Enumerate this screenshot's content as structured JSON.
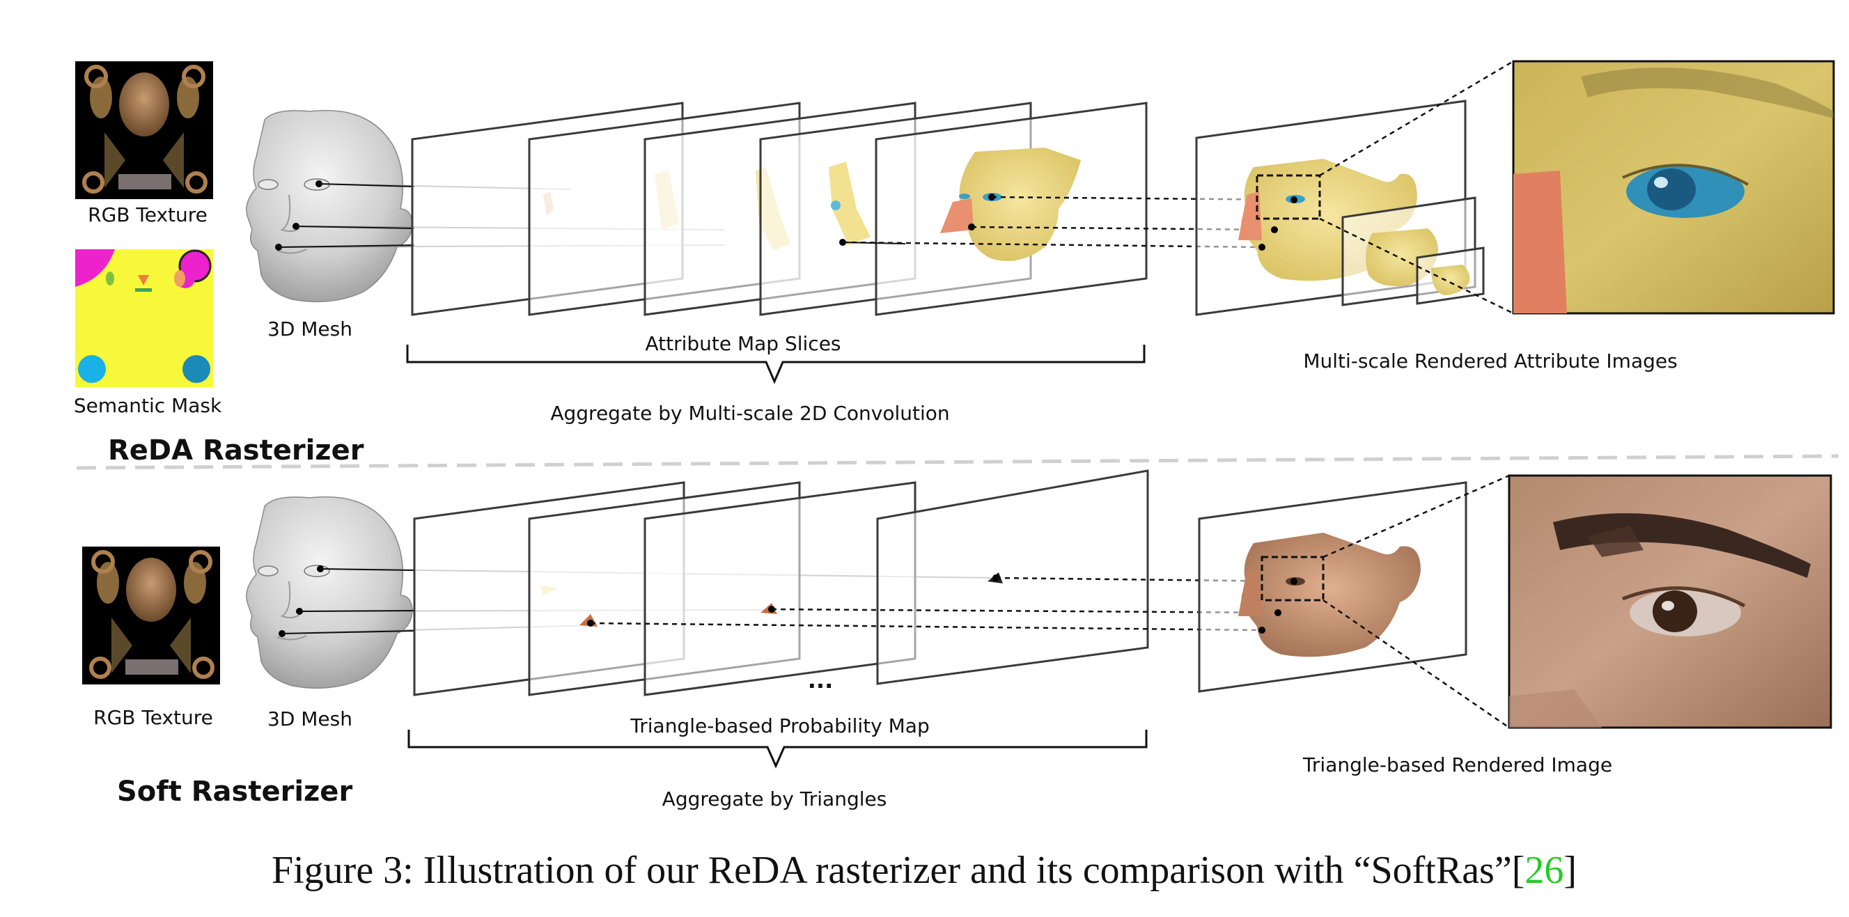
{
  "caption": {
    "prefix": "Figure 3: Illustration of our ReDA rasterizer and its comparison with “SoftRas”[",
    "ref": "26",
    "suffix": "]",
    "ref_color": "#22cc22"
  },
  "reda": {
    "title": "ReDA Rasterizer",
    "rgb_texture_label": "RGB Texture",
    "semantic_mask_label": "Semantic Mask",
    "mesh_label": "3D Mesh",
    "slices_label": "Attribute Map Slices",
    "aggregate_label": "Aggregate by Multi-scale 2D Convolution",
    "rendered_label": "Multi-scale Rendered Attribute Images"
  },
  "soft": {
    "title": "Soft Rasterizer",
    "rgb_texture_label": "RGB Texture",
    "mesh_label": "3D Mesh",
    "ellipsis": "...",
    "prob_map_label": "Triangle-based Probability Map",
    "aggregate_label": "Aggregate by Triangles",
    "rendered_label": "Triangle-based Rendered Image"
  },
  "colors": {
    "mask_yellow": "#f8f83a",
    "mask_magenta": "#ee22cc",
    "mask_cyan": "#1ab0e8",
    "skin_yellow": "#eedd88",
    "skin_tan": "#c89070"
  }
}
